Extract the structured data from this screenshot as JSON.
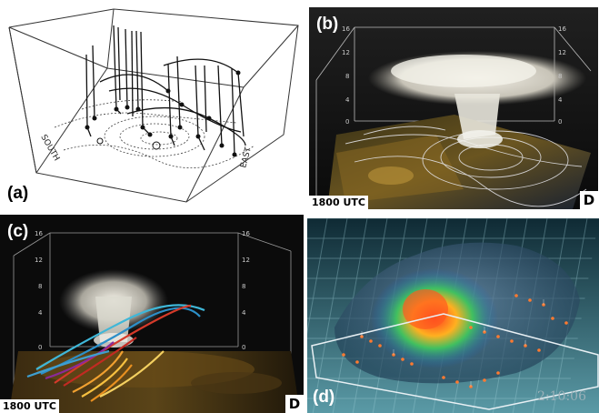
{
  "panels": {
    "a": {
      "label": "(a)",
      "wall_labels": [
        "SOUTH",
        "EAST"
      ]
    },
    "b": {
      "label": "(b)",
      "time": "1800 UTC",
      "badge": "D",
      "axis_ticks": [
        "16",
        "12",
        "8",
        "4",
        "0"
      ]
    },
    "c": {
      "label": "(c)",
      "time": "1800 UTC",
      "badge": "D",
      "axis_ticks": [
        "16",
        "12",
        "8",
        "4",
        "0"
      ]
    },
    "d": {
      "label": "(d)",
      "clock": "2:10:06"
    }
  }
}
